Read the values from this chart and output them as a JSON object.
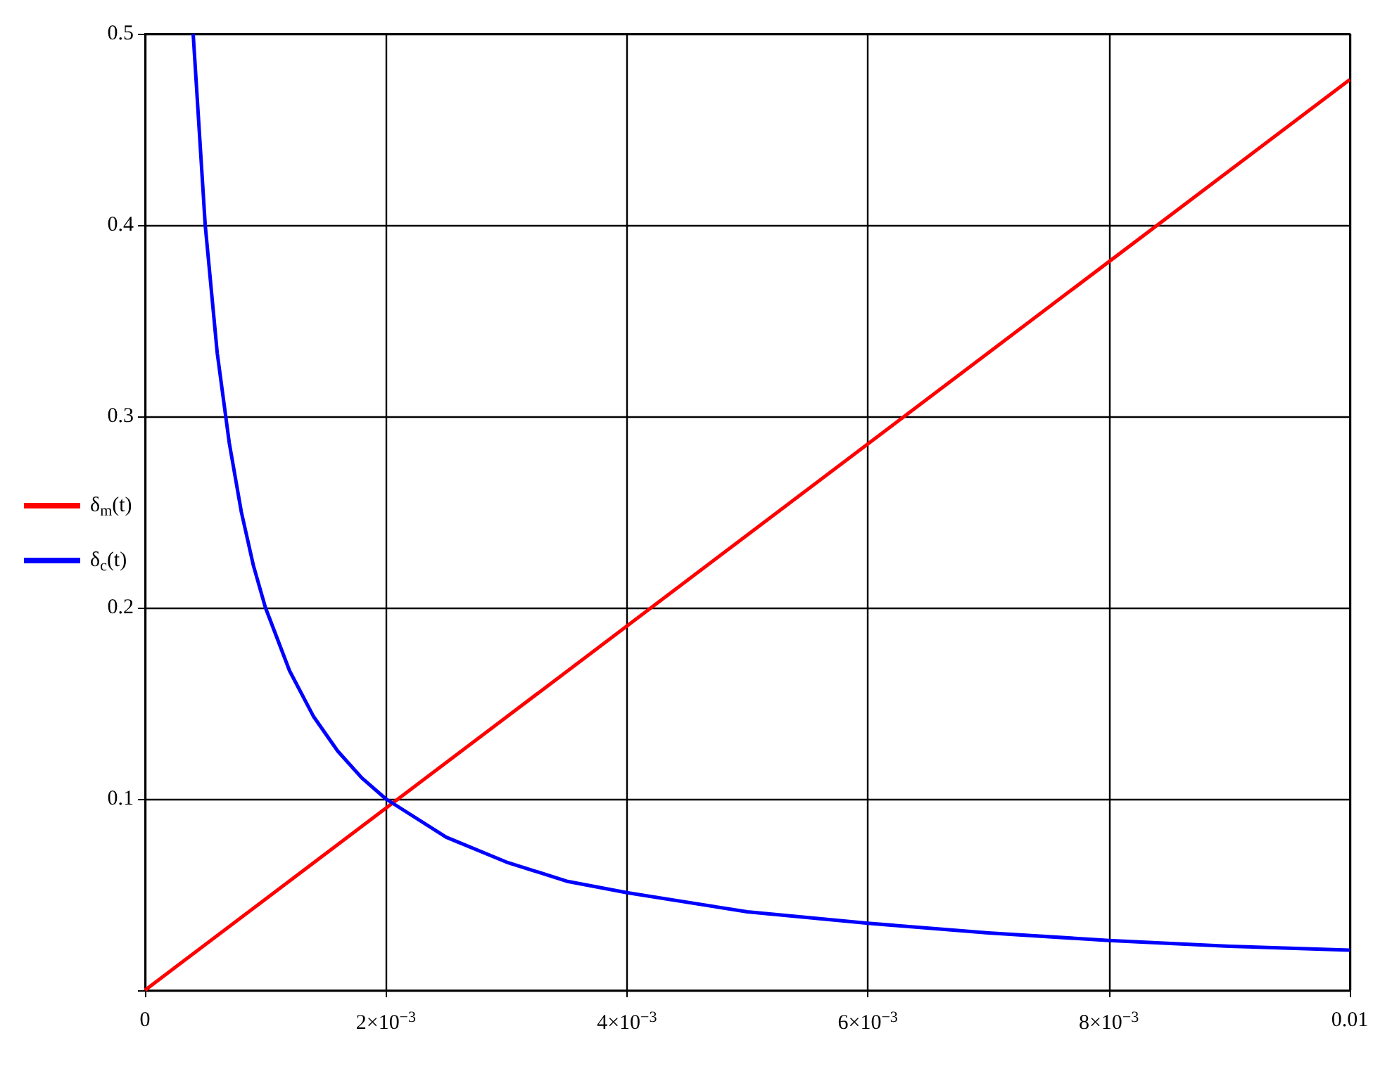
{
  "chart_data": {
    "type": "line",
    "series": [
      {
        "name": "δ$_{m}$(t)",
        "color": "#ff0000",
        "x": [
          0,
          0.01
        ],
        "values": [
          0,
          0.476
        ]
      },
      {
        "name": "δ$_{c}$(t)",
        "color": "#0000ff",
        "x": [
          0.0004,
          0.0005,
          0.0006,
          0.0007,
          0.0008,
          0.0009,
          0.001,
          0.0012,
          0.0014,
          0.0016,
          0.0018,
          0.002,
          0.0025,
          0.003,
          0.0035,
          0.004,
          0.005,
          0.006,
          0.007,
          0.008,
          0.009,
          0.01
        ],
        "values": [
          0.5,
          0.4,
          0.333,
          0.286,
          0.25,
          0.222,
          0.2,
          0.167,
          0.143,
          0.125,
          0.111,
          0.1,
          0.08,
          0.067,
          0.057,
          0.051,
          0.041,
          0.035,
          0.03,
          0.026,
          0.023,
          0.021
        ]
      }
    ],
    "xlim": [
      0,
      0.01
    ],
    "xticks": [
      "0",
      {
        "value": 0.002,
        "label": "2×10$^{−3}$"
      },
      {
        "value": 0.004,
        "label": "4×10$^{−3}$"
      },
      {
        "value": 0.006,
        "label": "6×10$^{−3}$"
      },
      {
        "value": 0.008,
        "label": "8×10$^{−3}$"
      },
      {
        "value": 0.01,
        "label": "0.01"
      }
    ],
    "ylim": [
      0,
      0.5
    ],
    "yticks": [
      {
        "value": 0,
        "label": null
      },
      0.1,
      0.2,
      0.3,
      0.4,
      0.5
    ],
    "grid": true,
    "legend": "left",
    "marker": "none",
    "line_style": "solid"
  }
}
